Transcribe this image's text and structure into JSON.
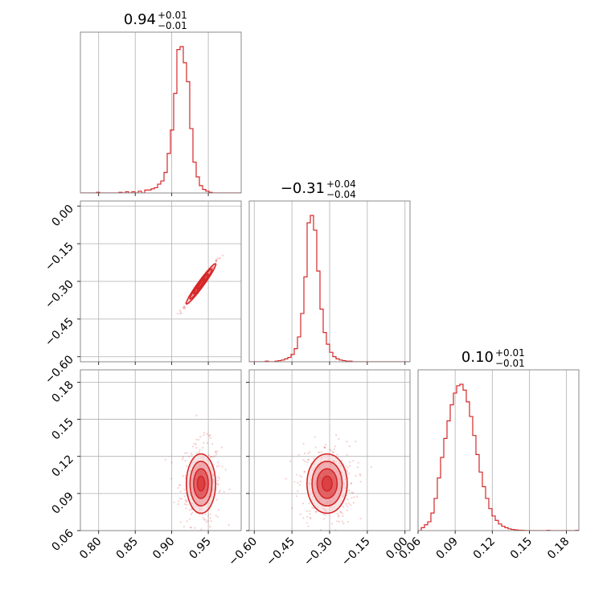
{
  "colors": {
    "accent": "#d62728",
    "fill_dark": "#d62728",
    "fill_mid": "#e8858a",
    "fill_light": "#f7d4d6",
    "grid": "#b0b0b0",
    "frame": "#7f7f7f"
  },
  "chart_data": {
    "type": "corner",
    "parameters": [
      {
        "title": {
          "value": "0.94",
          "plus": "+0.01",
          "minus": "−0.01"
        },
        "range": [
          0.775,
          0.995
        ],
        "ticks": [
          0.8,
          0.85,
          0.9,
          0.95
        ],
        "tick_labels": [
          "0.80",
          "0.85",
          "0.90",
          "0.95"
        ],
        "histogram": {
          "edges_start": 0.775,
          "bin_width": 0.0044,
          "counts": [
            0,
            0,
            0,
            0,
            0,
            0.004,
            0,
            0,
            0,
            0,
            0,
            0,
            0.004,
            0,
            0.008,
            0,
            0.008,
            0,
            0.012,
            0,
            0.02,
            0.02,
            0.028,
            0.036,
            0.06,
            0.082,
            0.14,
            0.27,
            0.43,
            0.68,
            0.98,
            1.0,
            0.89,
            0.76,
            0.44,
            0.21,
            0.11,
            0.05,
            0.024,
            0.012,
            0.004,
            0,
            0,
            0,
            0,
            0,
            0,
            0,
            0,
            0
          ]
        }
      },
      {
        "title": {
          "value": "−0.31",
          "plus": "+0.04",
          "minus": "−0.04"
        },
        "range": [
          -0.62,
          0.02
        ],
        "ticks": [
          -0.6,
          -0.45,
          -0.3,
          -0.15,
          0.0
        ],
        "tick_labels": [
          "−0.60",
          "−0.45",
          "−0.30",
          "−0.15",
          "0.00"
        ],
        "histogram": {
          "edges_start": -0.62,
          "bin_width": 0.0128,
          "counts": [
            0,
            0,
            0,
            0,
            0,
            0.004,
            0,
            0,
            0.004,
            0.008,
            0.012,
            0.02,
            0.03,
            0.05,
            0.09,
            0.17,
            0.33,
            0.58,
            0.95,
            1.0,
            0.9,
            0.62,
            0.36,
            0.2,
            0.12,
            0.065,
            0.035,
            0.02,
            0.012,
            0.008,
            0.004,
            0.004,
            0,
            0,
            0,
            0,
            0,
            0,
            0,
            0,
            0,
            0,
            0,
            0,
            0,
            0,
            0,
            0,
            0,
            0
          ]
        }
      },
      {
        "title": {
          "value": "0.10",
          "plus": "+0.01",
          "minus": "−0.01"
        },
        "range": [
          0.06,
          0.19
        ],
        "ticks": [
          0.06,
          0.09,
          0.12,
          0.15,
          0.18
        ],
        "tick_labels": [
          "0.06",
          "0.09",
          "0.12",
          "0.15",
          "0.18"
        ],
        "histogram": {
          "edges_start": 0.06,
          "bin_width": 0.0026,
          "counts": [
            0,
            0.02,
            0.04,
            0.06,
            0.12,
            0.22,
            0.36,
            0.5,
            0.63,
            0.75,
            0.86,
            0.94,
            0.99,
            1.0,
            0.96,
            0.88,
            0.78,
            0.65,
            0.52,
            0.4,
            0.3,
            0.22,
            0.15,
            0.1,
            0.07,
            0.045,
            0.03,
            0.02,
            0.012,
            0.008,
            0.005,
            0.003,
            0.002,
            0.001,
            0,
            0,
            0,
            0,
            0,
            0,
            0.002,
            0,
            0,
            0,
            0,
            0,
            0,
            0,
            0,
            0.002
          ]
        }
      }
    ],
    "panels_2d": [
      {
        "x_param": 0,
        "y_param": 1,
        "rho": 0.99,
        "mean": [
          0.94,
          -0.31
        ],
        "sd": [
          0.01,
          0.04
        ],
        "scatter_n": 140
      },
      {
        "x_param": 0,
        "y_param": 2,
        "rho": 0.0,
        "mean": [
          0.94,
          0.098
        ],
        "sd": [
          0.01,
          0.012
        ],
        "scatter_n": 360
      },
      {
        "x_param": 1,
        "y_param": 2,
        "rho": 0.0,
        "mean": [
          -0.31,
          0.098
        ],
        "sd": [
          0.04,
          0.012
        ],
        "scatter_n": 360
      }
    ],
    "grid": true
  }
}
